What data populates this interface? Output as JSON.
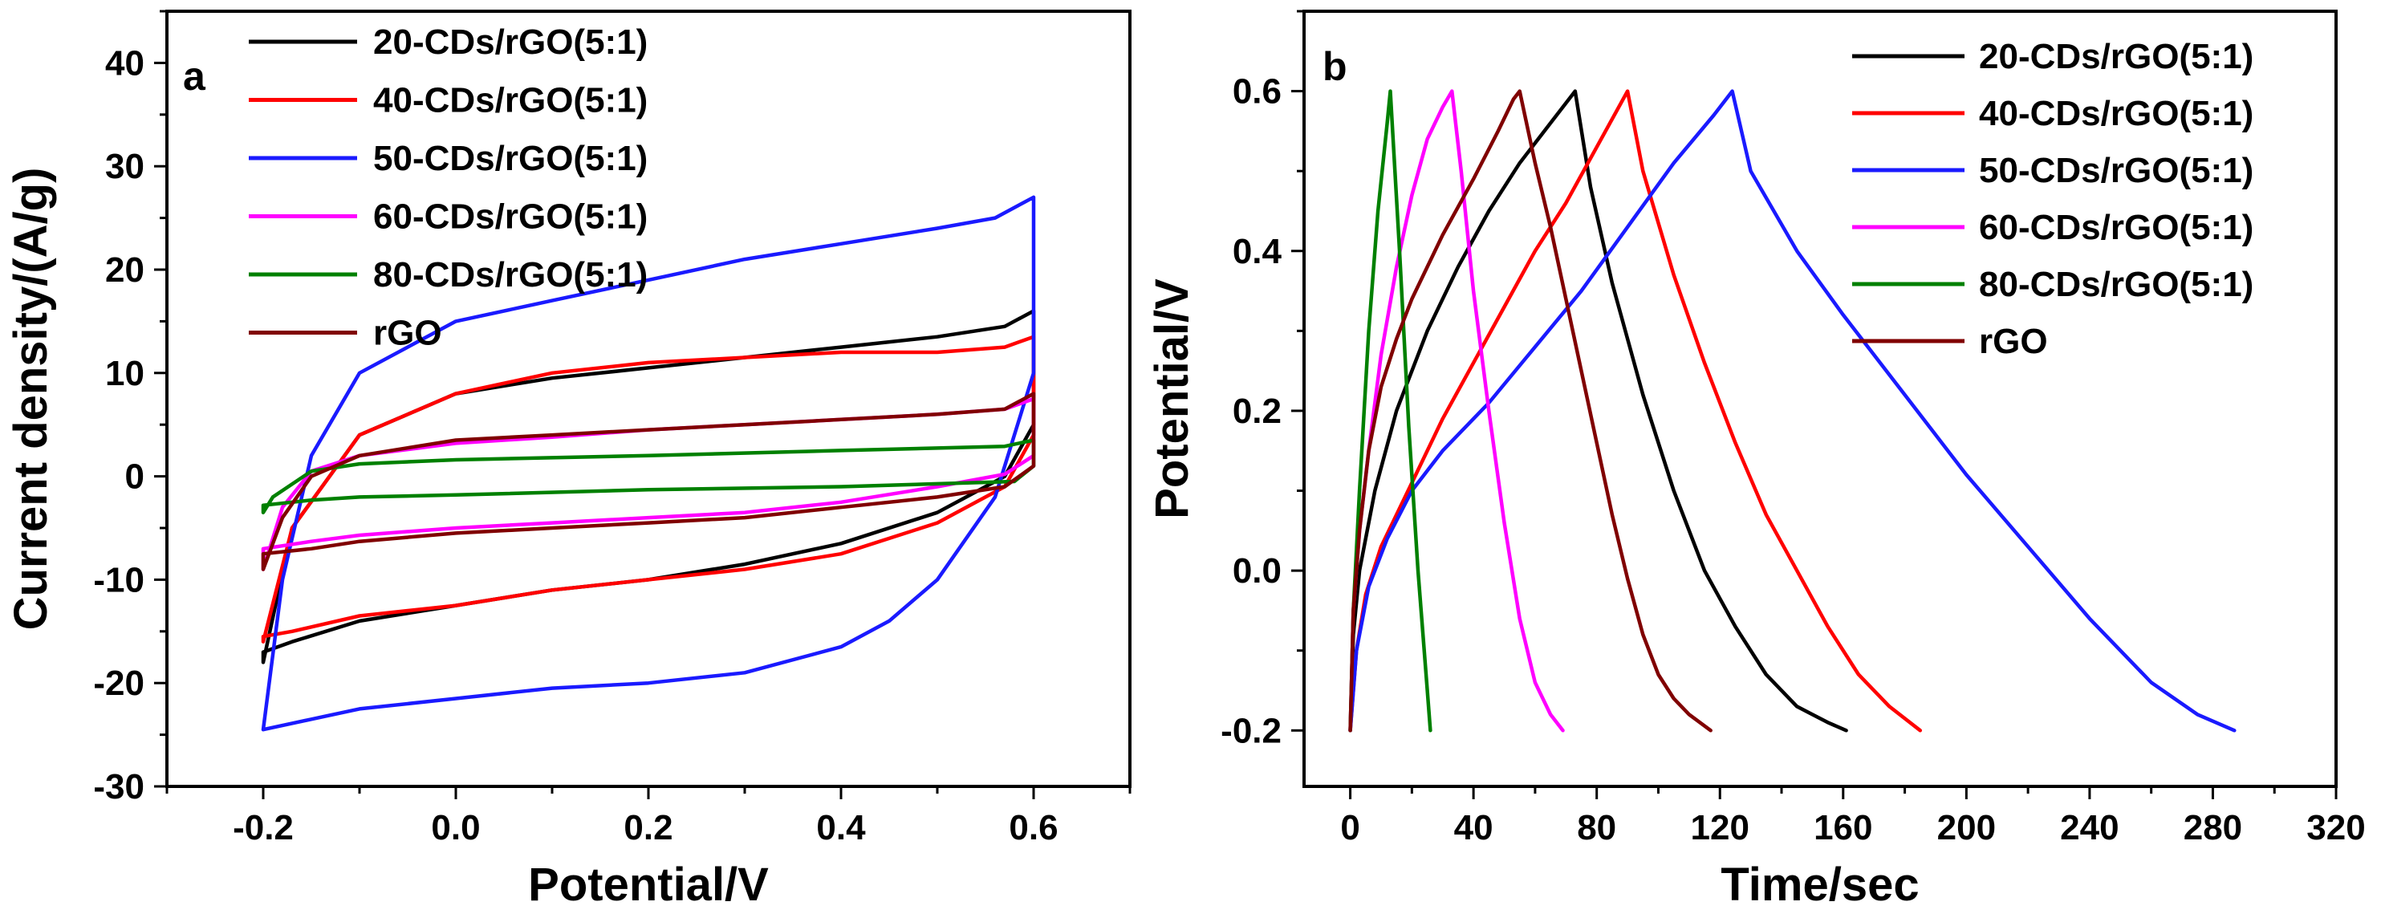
{
  "colors": {
    "black": "#000000",
    "red": "#ff0000",
    "blue": "#1a1aff",
    "magenta": "#ff00ff",
    "green": "#008000",
    "maroon": "#800000"
  },
  "chart_data": [
    {
      "type": "line",
      "panel": "a",
      "title": "",
      "xlabel": "Potential/V",
      "ylabel": "Current density/(A/g)",
      "xlim": [
        -0.3,
        0.7
      ],
      "ylim": [
        -30,
        45
      ],
      "xticks": [
        -0.2,
        0.0,
        0.2,
        0.4,
        0.6
      ],
      "xtick_labels": [
        "-0.2",
        "0.0",
        "0.2",
        "0.4",
        "0.6"
      ],
      "yticks": [
        -30,
        -20,
        -10,
        0,
        10,
        20,
        30,
        40
      ],
      "ytick_labels": [
        "-30",
        "-20",
        "-10",
        "0",
        "10",
        "20",
        "30",
        "40"
      ],
      "legend_position": "top-left",
      "series": [
        {
          "name": "20-CDs/rGO(5:1)",
          "color": "black",
          "x": [
            -0.2,
            -0.17,
            -0.1,
            0,
            0.1,
            0.2,
            0.3,
            0.4,
            0.5,
            0.57,
            0.6,
            0.6,
            0.57,
            0.5,
            0.4,
            0.3,
            0.2,
            0.1,
            0,
            -0.1,
            -0.17,
            -0.2,
            -0.2
          ],
          "y": [
            -18,
            -5,
            4,
            8,
            9.5,
            10.5,
            11.5,
            12.5,
            13.5,
            14.5,
            16,
            5,
            0,
            -3.5,
            -6.5,
            -8.5,
            -10,
            -11,
            -12.5,
            -14,
            -16,
            -17,
            -18
          ]
        },
        {
          "name": "40-CDs/rGO(5:1)",
          "color": "red",
          "x": [
            -0.2,
            -0.17,
            -0.1,
            0,
            0.1,
            0.2,
            0.3,
            0.4,
            0.5,
            0.57,
            0.6,
            0.6,
            0.57,
            0.5,
            0.4,
            0.3,
            0.2,
            0.1,
            0,
            -0.1,
            -0.17,
            -0.2,
            -0.2
          ],
          "y": [
            -16,
            -5,
            4,
            8,
            10,
            11,
            11.5,
            12,
            12,
            12.5,
            13.5,
            4,
            -1,
            -4.5,
            -7.5,
            -9,
            -10,
            -11,
            -12.5,
            -13.5,
            -15,
            -15.5,
            -16
          ]
        },
        {
          "name": "50-CDs/rGO(5:1)",
          "color": "blue",
          "x": [
            -0.2,
            -0.18,
            -0.15,
            -0.1,
            0,
            0.1,
            0.2,
            0.3,
            0.4,
            0.5,
            0.56,
            0.6,
            0.6,
            0.56,
            0.5,
            0.45,
            0.4,
            0.3,
            0.2,
            0.1,
            0,
            -0.1,
            -0.15,
            -0.2,
            -0.2
          ],
          "y": [
            -24.5,
            -10,
            2,
            10,
            15,
            17,
            19,
            21,
            22.5,
            24,
            25,
            27,
            10,
            -2,
            -10,
            -14,
            -16.5,
            -19,
            -20,
            -20.5,
            -21.5,
            -22.5,
            -23.5,
            -24.5,
            -24.5
          ]
        },
        {
          "name": "60-CDs/rGO(5:1)",
          "color": "magenta",
          "x": [
            -0.2,
            -0.18,
            -0.15,
            -0.1,
            0,
            0.1,
            0.2,
            0.3,
            0.4,
            0.5,
            0.57,
            0.6,
            0.6,
            0.57,
            0.5,
            0.4,
            0.3,
            0.2,
            0.1,
            0,
            -0.1,
            -0.15,
            -0.2,
            -0.2
          ],
          "y": [
            -9,
            -3,
            0.5,
            2,
            3.2,
            3.8,
            4.5,
            5,
            5.5,
            6,
            6.5,
            7.5,
            2,
            0.2,
            -1,
            -2.5,
            -3.5,
            -4,
            -4.5,
            -5,
            -5.7,
            -6.3,
            -7,
            -9
          ]
        },
        {
          "name": "80-CDs/rGO(5:1)",
          "color": "green",
          "x": [
            -0.2,
            -0.19,
            -0.15,
            -0.1,
            0,
            0.2,
            0.4,
            0.57,
            0.6,
            0.6,
            0.58,
            0.4,
            0.2,
            0,
            -0.1,
            -0.15,
            -0.2,
            -0.2
          ],
          "y": [
            -3.5,
            -2,
            0.5,
            1.2,
            1.6,
            2,
            2.5,
            2.9,
            3.5,
            1,
            -0.5,
            -1,
            -1.3,
            -1.8,
            -2,
            -2.3,
            -2.8,
            -3.5
          ]
        },
        {
          "name": "rGO",
          "color": "maroon",
          "x": [
            -0.2,
            -0.18,
            -0.15,
            -0.1,
            0,
            0.1,
            0.2,
            0.3,
            0.4,
            0.5,
            0.57,
            0.6,
            0.6,
            0.57,
            0.5,
            0.4,
            0.3,
            0.2,
            0.1,
            0,
            -0.1,
            -0.15,
            -0.2,
            -0.2
          ],
          "y": [
            -9,
            -4,
            0,
            2,
            3.5,
            4,
            4.5,
            5,
            5.5,
            6,
            6.5,
            8,
            1,
            -1,
            -2,
            -3,
            -4,
            -4.5,
            -5,
            -5.5,
            -6.3,
            -7,
            -7.5,
            -9
          ]
        }
      ]
    },
    {
      "type": "line",
      "panel": "b",
      "title": "",
      "xlabel": "Time/sec",
      "ylabel": "Potential/V",
      "xlim": [
        -15,
        320
      ],
      "ylim": [
        -0.27,
        0.7
      ],
      "xticks": [
        0,
        40,
        80,
        120,
        160,
        200,
        240,
        280,
        320
      ],
      "xtick_labels": [
        "0",
        "40",
        "80",
        "120",
        "160",
        "200",
        "240",
        "280",
        "320"
      ],
      "yticks": [
        -0.2,
        0.0,
        0.2,
        0.4,
        0.6
      ],
      "ytick_labels": [
        "-0.2",
        "0.0",
        "0.2",
        "0.4",
        "0.6"
      ],
      "legend_position": "top-right",
      "series": [
        {
          "name": "20-CDs/rGO(5:1)",
          "color": "black",
          "x": [
            0,
            1,
            3,
            8,
            15,
            25,
            35,
            45,
            55,
            65,
            73,
            78,
            85,
            95,
            105,
            115,
            125,
            135,
            145,
            155,
            161
          ],
          "y": [
            -0.2,
            -0.08,
            0.0,
            0.1,
            0.2,
            0.3,
            0.38,
            0.45,
            0.51,
            0.56,
            0.6,
            0.48,
            0.36,
            0.22,
            0.1,
            0.0,
            -0.07,
            -0.13,
            -0.17,
            -0.19,
            -0.2
          ]
        },
        {
          "name": "40-CDs/rGO(5:1)",
          "color": "red",
          "x": [
            0,
            2,
            5,
            10,
            20,
            30,
            40,
            50,
            60,
            70,
            80,
            90,
            95,
            105,
            115,
            125,
            135,
            145,
            155,
            165,
            175,
            185
          ],
          "y": [
            -0.2,
            -0.1,
            -0.03,
            0.03,
            0.11,
            0.19,
            0.26,
            0.33,
            0.4,
            0.46,
            0.53,
            0.6,
            0.5,
            0.37,
            0.26,
            0.16,
            0.07,
            0.0,
            -0.07,
            -0.13,
            -0.17,
            -0.2
          ]
        },
        {
          "name": "50-CDs/rGO(5:1)",
          "color": "blue",
          "x": [
            0,
            2,
            6,
            12,
            20,
            30,
            45,
            60,
            75,
            90,
            105,
            118,
            124,
            130,
            145,
            160,
            180,
            200,
            220,
            240,
            260,
            275,
            287
          ],
          "y": [
            -0.2,
            -0.1,
            -0.02,
            0.04,
            0.1,
            0.15,
            0.21,
            0.28,
            0.35,
            0.43,
            0.51,
            0.57,
            0.6,
            0.5,
            0.4,
            0.32,
            0.22,
            0.12,
            0.03,
            -0.06,
            -0.14,
            -0.18,
            -0.2
          ]
        },
        {
          "name": "60-CDs/rGO(5:1)",
          "color": "magenta",
          "x": [
            0,
            1,
            3,
            6,
            10,
            15,
            20,
            25,
            30,
            33,
            36,
            40,
            45,
            50,
            55,
            60,
            65,
            69
          ],
          "y": [
            -0.2,
            -0.05,
            0.05,
            0.15,
            0.27,
            0.38,
            0.47,
            0.54,
            0.58,
            0.6,
            0.5,
            0.35,
            0.2,
            0.06,
            -0.06,
            -0.14,
            -0.18,
            -0.2
          ]
        },
        {
          "name": "80-CDs/rGO(5:1)",
          "color": "green",
          "x": [
            0,
            1,
            3,
            6,
            9,
            12,
            13,
            16,
            19,
            22,
            25,
            26
          ],
          "y": [
            -0.2,
            -0.05,
            0.1,
            0.3,
            0.45,
            0.56,
            0.6,
            0.4,
            0.18,
            0.0,
            -0.15,
            -0.2
          ]
        },
        {
          "name": "rGO",
          "color": "maroon",
          "x": [
            0,
            1,
            3,
            6,
            10,
            15,
            20,
            30,
            40,
            48,
            53,
            55,
            60,
            65,
            70,
            75,
            80,
            85,
            90,
            95,
            100,
            105,
            110,
            117
          ],
          "y": [
            -0.2,
            -0.05,
            0.05,
            0.15,
            0.23,
            0.29,
            0.34,
            0.42,
            0.49,
            0.55,
            0.59,
            0.6,
            0.51,
            0.43,
            0.34,
            0.25,
            0.16,
            0.07,
            -0.01,
            -0.08,
            -0.13,
            -0.16,
            -0.18,
            -0.2
          ]
        }
      ]
    }
  ]
}
